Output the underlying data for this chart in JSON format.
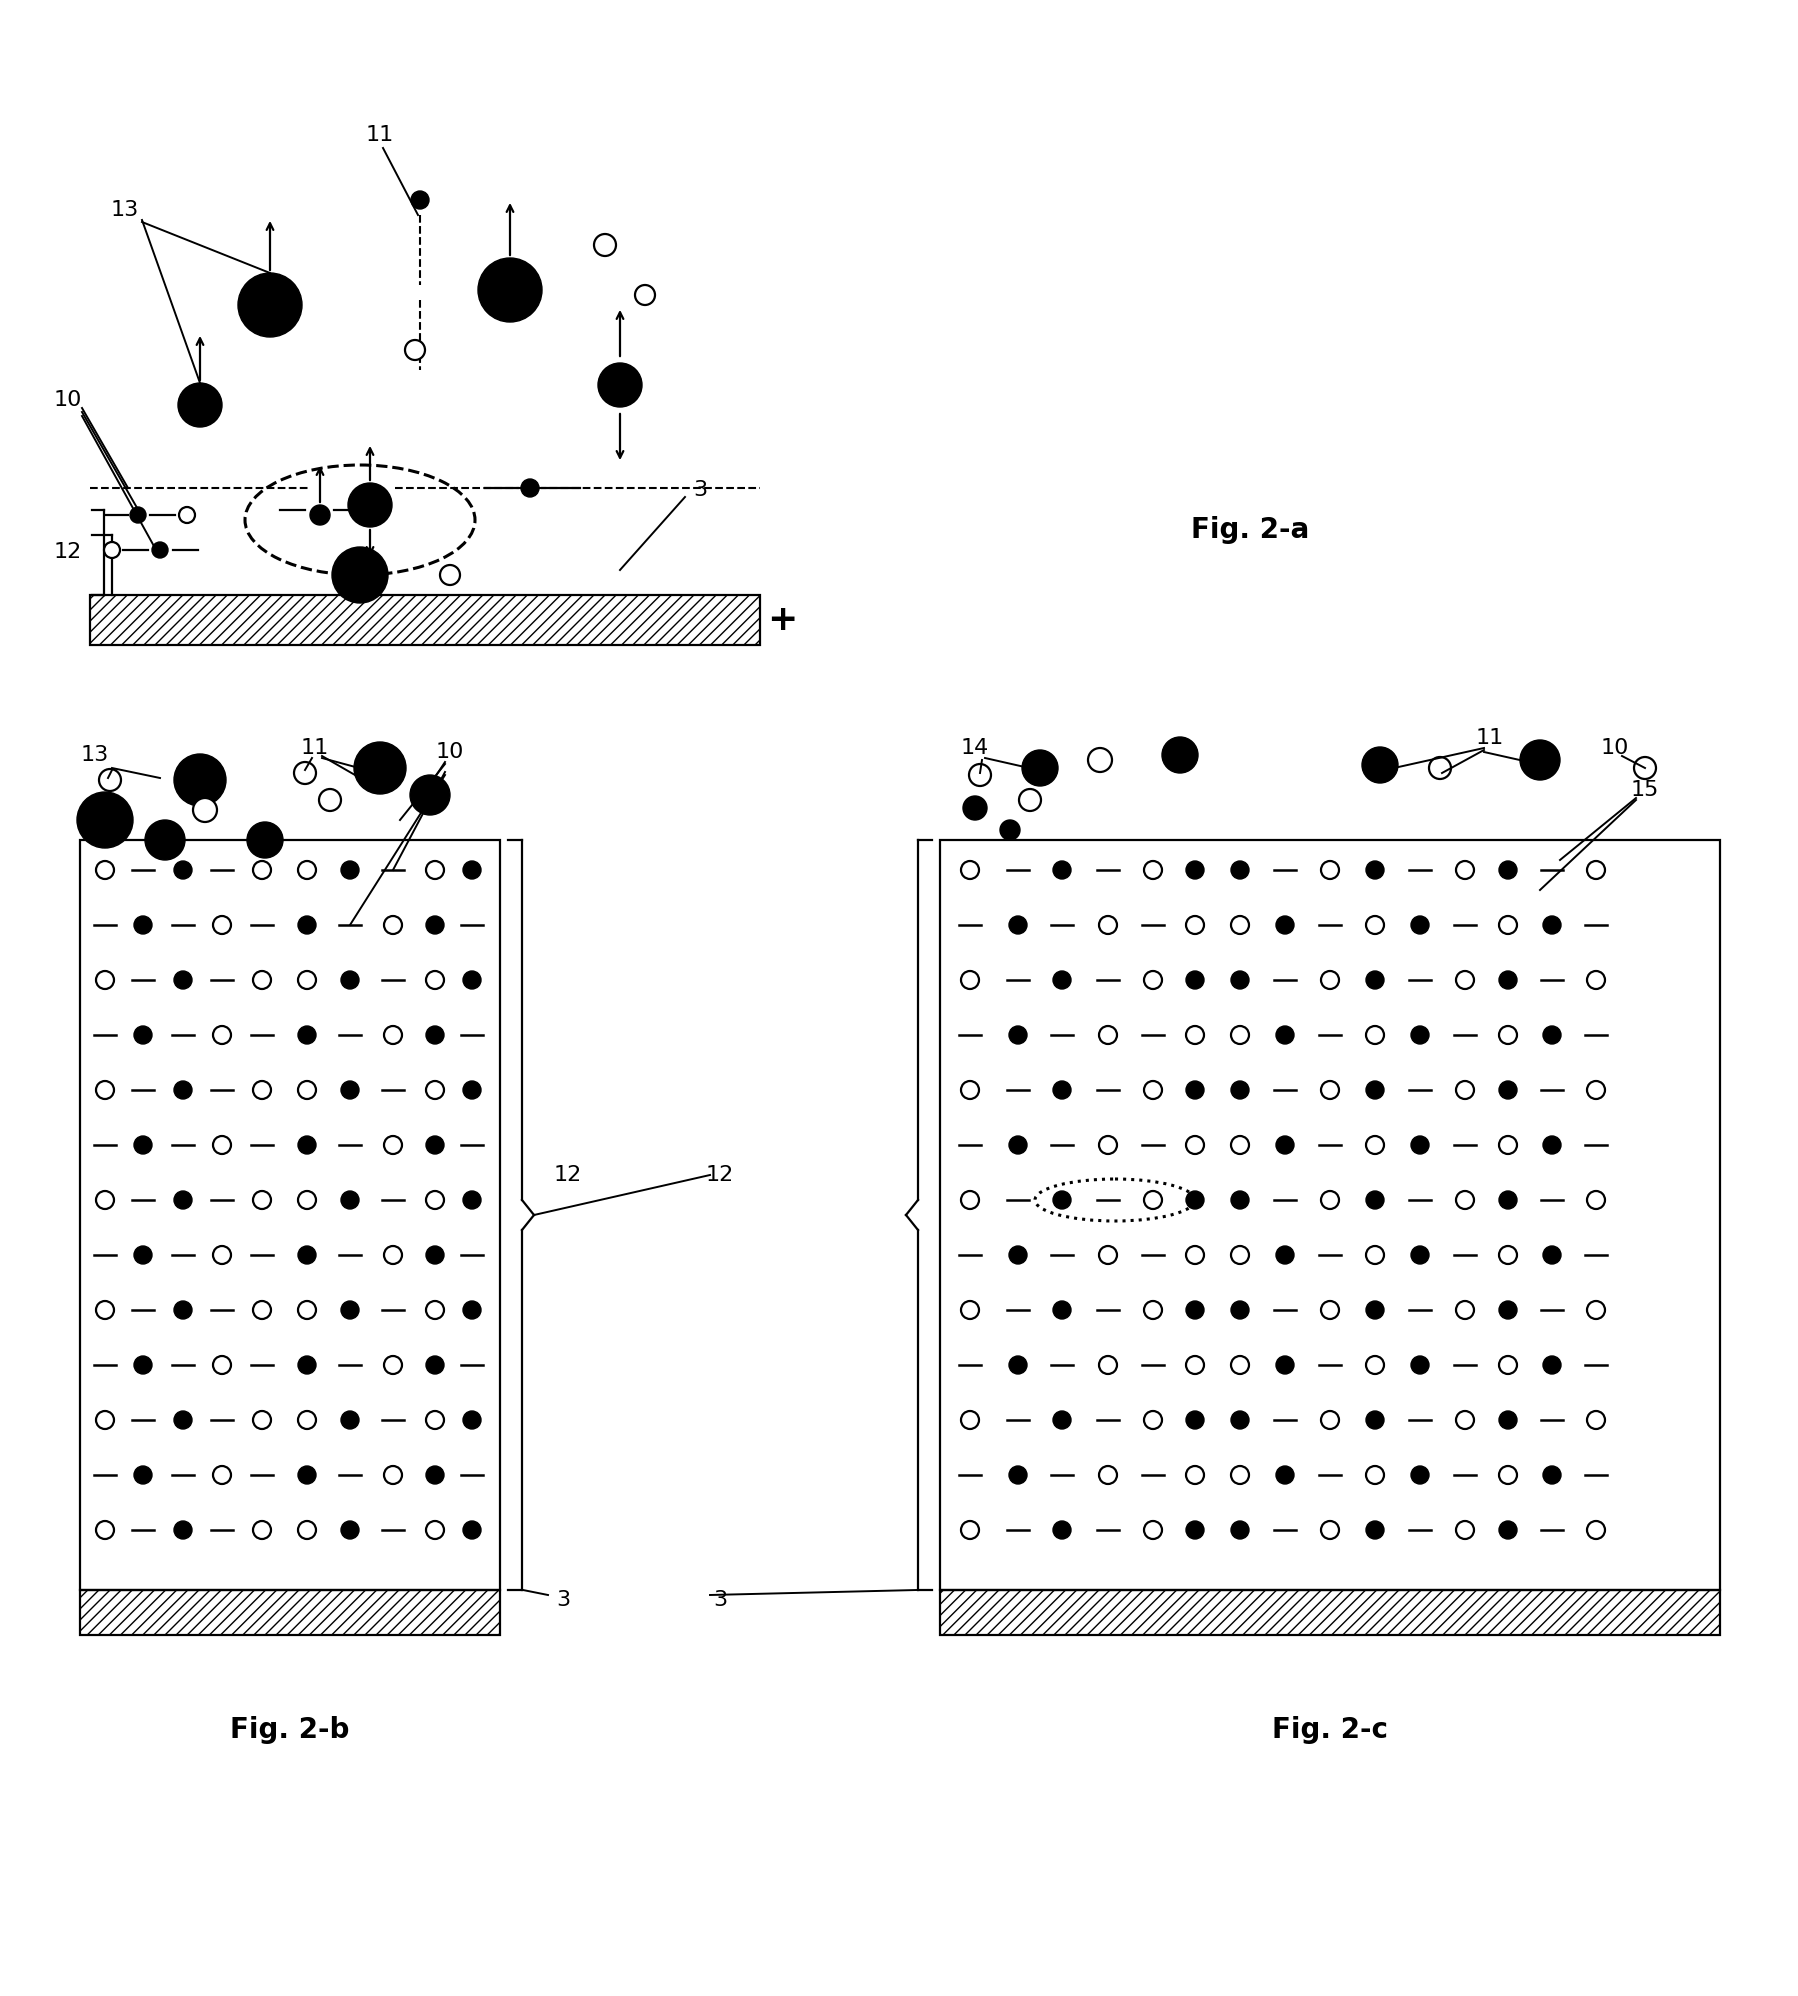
{
  "bg": "#ffffff",
  "lw": 1.6,
  "fs_num": 16,
  "fs_label": 20,
  "fig2a_label": "Fig. 2-a",
  "fig2b_label": "Fig. 2-b",
  "fig2c_label": "Fig. 2-c"
}
